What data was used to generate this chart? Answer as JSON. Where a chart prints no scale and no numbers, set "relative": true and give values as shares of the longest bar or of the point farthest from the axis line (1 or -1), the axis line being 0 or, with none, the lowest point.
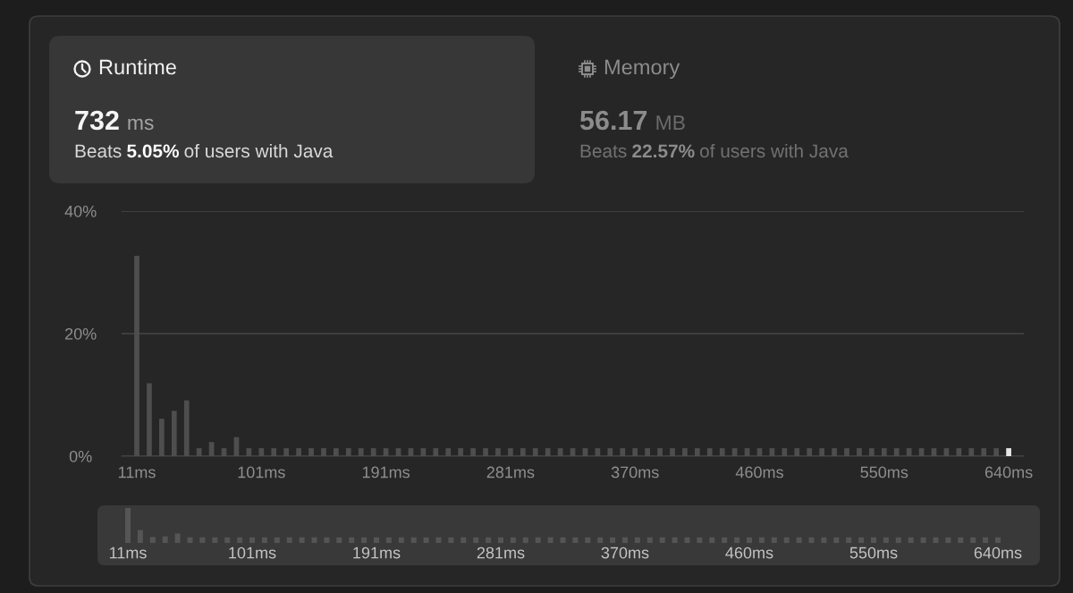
{
  "chart_data": [
    {
      "type": "other",
      "title": "Runtime",
      "annotations": [
        "732",
        "ms",
        "Beats",
        "5.05%",
        "of users with Java"
      ]
    },
    {
      "type": "other",
      "title": "Memory",
      "annotations": [
        "56.17",
        "MB",
        "Beats",
        "22.57%",
        "of users with Java"
      ]
    },
    {
      "type": "bar",
      "categories": [
        "11ms",
        null,
        null,
        null,
        null,
        null,
        null,
        null,
        null,
        null,
        "101ms",
        null,
        null,
        null,
        null,
        null,
        null,
        null,
        null,
        null,
        "191ms",
        null,
        null,
        null,
        null,
        null,
        null,
        null,
        null,
        null,
        "281ms",
        null,
        null,
        null,
        null,
        null,
        null,
        null,
        null,
        null,
        "370ms",
        null,
        null,
        null,
        null,
        null,
        null,
        null,
        null,
        null,
        "460ms",
        null,
        null,
        null,
        null,
        null,
        null,
        null,
        null,
        null,
        "550ms",
        null,
        null,
        null,
        null,
        null,
        null,
        null,
        null,
        null,
        "640ms"
      ],
      "values": [
        32.7,
        11.9,
        6.1,
        7.4,
        9.1,
        1.3,
        2.3,
        1.3,
        3.1,
        1.3,
        1.3,
        1.3,
        1.3,
        1.3,
        1.3,
        1.3,
        1.3,
        1.3,
        1.3,
        1.3,
        1.3,
        1.3,
        1.3,
        1.3,
        1.3,
        1.3,
        1.3,
        1.3,
        1.3,
        1.3,
        1.3,
        1.3,
        1.3,
        1.3,
        1.3,
        1.3,
        1.3,
        1.3,
        1.3,
        1.3,
        1.3,
        1.3,
        1.3,
        1.3,
        1.3,
        1.3,
        1.3,
        1.3,
        1.3,
        1.3,
        1.3,
        1.3,
        1.3,
        1.3,
        1.3,
        1.3,
        1.3,
        1.3,
        1.3,
        1.3,
        1.3,
        1.3,
        1.3,
        1.3,
        1.3,
        1.3,
        1.3,
        1.3,
        1.3,
        1.3,
        1.3
      ],
      "colors": [
        "#4e4e4e",
        "#4e4e4e",
        "#4e4e4e",
        "#4e4e4e",
        "#4e4e4e",
        "#4e4e4e",
        "#4e4e4e",
        "#4e4e4e",
        "#4e4e4e",
        "#4e4e4e",
        "#4e4e4e",
        "#4e4e4e",
        "#4e4e4e",
        "#4e4e4e",
        "#4e4e4e",
        "#4e4e4e",
        "#4e4e4e",
        "#4e4e4e",
        "#4e4e4e",
        "#4e4e4e",
        "#4e4e4e",
        "#4e4e4e",
        "#4e4e4e",
        "#4e4e4e",
        "#4e4e4e",
        "#4e4e4e",
        "#4e4e4e",
        "#4e4e4e",
        "#4e4e4e",
        "#4e4e4e",
        "#4e4e4e",
        "#4e4e4e",
        "#4e4e4e",
        "#4e4e4e",
        "#4e4e4e",
        "#4e4e4e",
        "#4e4e4e",
        "#4e4e4e",
        "#4e4e4e",
        "#4e4e4e",
        "#4e4e4e",
        "#4e4e4e",
        "#4e4e4e",
        "#4e4e4e",
        "#4e4e4e",
        "#4e4e4e",
        "#4e4e4e",
        "#4e4e4e",
        "#4e4e4e",
        "#4e4e4e",
        "#4e4e4e",
        "#4e4e4e",
        "#4e4e4e",
        "#4e4e4e",
        "#4e4e4e",
        "#4e4e4e",
        "#4e4e4e",
        "#4e4e4e",
        "#4e4e4e",
        "#4e4e4e",
        "#4e4e4e",
        "#4e4e4e",
        "#4e4e4e",
        "#4e4e4e",
        "#4e4e4e",
        "#4e4e4e",
        "#4e4e4e",
        "#4e4e4e",
        "#4e4e4e",
        "#4e4e4e",
        "#e6e6e6"
      ],
      "ylim": [
        0,
        40
      ],
      "yticks": [
        {
          "value": 0,
          "label": "0%"
        },
        {
          "value": 20,
          "label": "20%"
        },
        {
          "value": 40,
          "label": "40%"
        }
      ],
      "grid": "y"
    },
    {
      "type": "bar",
      "relative": true,
      "categories": [
        "11ms",
        null,
        null,
        null,
        null,
        null,
        null,
        null,
        null,
        null,
        "101ms",
        null,
        null,
        null,
        null,
        null,
        null,
        null,
        null,
        null,
        "191ms",
        null,
        null,
        null,
        null,
        null,
        null,
        null,
        null,
        null,
        "281ms",
        null,
        null,
        null,
        null,
        null,
        null,
        null,
        null,
        null,
        "370ms",
        null,
        null,
        null,
        null,
        null,
        null,
        null,
        null,
        null,
        "460ms",
        null,
        null,
        null,
        null,
        null,
        null,
        null,
        null,
        null,
        "550ms",
        null,
        null,
        null,
        null,
        null,
        null,
        null,
        null,
        null,
        "640ms"
      ],
      "values": [
        1,
        0.37,
        0.17,
        0.19,
        0.27,
        0.16,
        0.16,
        0.16,
        0.16,
        0.16,
        0.16,
        0.16,
        0.16,
        0.16,
        0.16,
        0.16,
        0.16,
        0.16,
        0.16,
        0.16,
        0.16,
        0.16,
        0.16,
        0.16,
        0.16,
        0.16,
        0.16,
        0.16,
        0.16,
        0.16,
        0.16,
        0.16,
        0.16,
        0.16,
        0.16,
        0.16,
        0.16,
        0.16,
        0.16,
        0.16,
        0.16,
        0.16,
        0.16,
        0.16,
        0.16,
        0.16,
        0.16,
        0.16,
        0.16,
        0.16,
        0.16,
        0.16,
        0.16,
        0.16,
        0.16,
        0.16,
        0.16,
        0.16,
        0.16,
        0.16,
        0.16,
        0.16,
        0.16,
        0.16,
        0.16,
        0.16,
        0.16,
        0.16,
        0.16,
        0.16,
        0.16
      ],
      "color": "#555555"
    }
  ]
}
